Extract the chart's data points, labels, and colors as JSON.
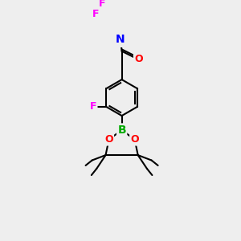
{
  "bg_color": "#eeeeee",
  "atom_colors": {
    "B": "#00aa00",
    "O": "#ff0000",
    "F": "#ff00ff",
    "N": "#0000ff",
    "C_carbonyl_O": "#ff0000"
  },
  "bond_color": "#000000",
  "bond_width": 1.5,
  "font_size_atoms": 9,
  "font_size_methyl": 8
}
